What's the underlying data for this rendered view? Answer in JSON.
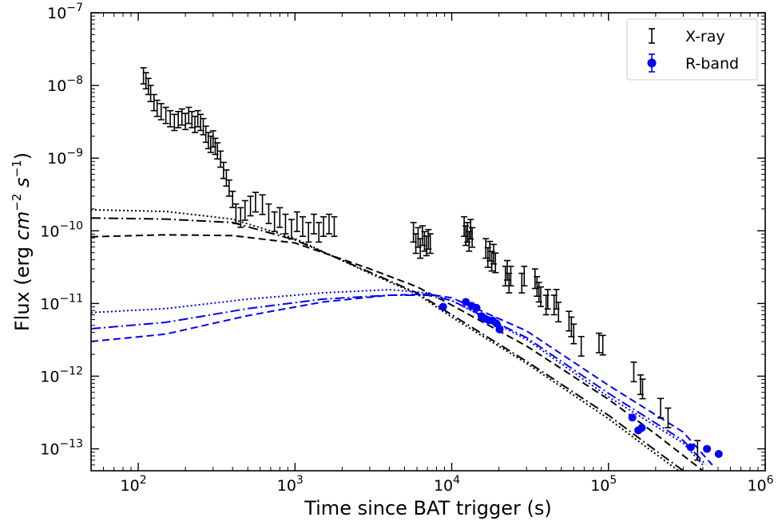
{
  "chart_data": {
    "type": "scatter",
    "title": "",
    "xlabel": "Time since BAT trigger (s)",
    "ylabel": "Flux (erg cm⁻² s⁻¹)",
    "ylabel_parts": {
      "prefix": "Flux (erg ",
      "cm": "cm",
      "cm_exp": "−2",
      "s": "s",
      "s_exp": "−1",
      "suffix": ")"
    },
    "xscale": "log",
    "yscale": "log",
    "xlim": [
      50,
      1000000
    ],
    "ylim": [
      5e-14,
      1e-07
    ],
    "x_ticks": [
      {
        "value": 100,
        "base": "10",
        "exp": "2"
      },
      {
        "value": 1000,
        "base": "10",
        "exp": "3"
      },
      {
        "value": 10000,
        "base": "10",
        "exp": "4"
      },
      {
        "value": 100000,
        "base": "10",
        "exp": "5"
      },
      {
        "value": 1000000,
        "base": "10",
        "exp": "6"
      }
    ],
    "y_ticks": [
      {
        "value": 1e-13,
        "base": "10",
        "exp": "−13"
      },
      {
        "value": 1e-12,
        "base": "10",
        "exp": "−12"
      },
      {
        "value": 1e-11,
        "base": "10",
        "exp": "−11"
      },
      {
        "value": 1e-10,
        "base": "10",
        "exp": "−10"
      },
      {
        "value": 1e-09,
        "base": "10",
        "exp": "−9"
      },
      {
        "value": 1e-08,
        "base": "10",
        "exp": "−8"
      },
      {
        "value": 1e-07,
        "base": "10",
        "exp": "−7"
      }
    ],
    "grid": false,
    "legend": {
      "placement": "top-right",
      "entries": [
        {
          "label": "X-ray",
          "marker": "errorbar",
          "color": "#000000"
        },
        {
          "label": "R-band",
          "marker": "circle",
          "color": "#0000ff"
        }
      ]
    },
    "series": [
      {
        "name": "X-ray",
        "color": "#000000",
        "marker": "errorbar",
        "points": [
          [
            108,
            1.4e-08,
            0.25
          ],
          [
            112,
            1.2e-08,
            0.25
          ],
          [
            116,
            1e-08,
            0.25
          ],
          [
            120,
            8e-09,
            0.25
          ],
          [
            126,
            6e-09,
            0.25
          ],
          [
            132,
            5e-09,
            0.25
          ],
          [
            140,
            4.5e-09,
            0.25
          ],
          [
            150,
            4e-09,
            0.25
          ],
          [
            160,
            3.6e-09,
            0.25
          ],
          [
            170,
            3.2e-09,
            0.25
          ],
          [
            180,
            3.5e-09,
            0.25
          ],
          [
            190,
            3.8e-09,
            0.25
          ],
          [
            200,
            3.3e-09,
            0.25
          ],
          [
            210,
            4e-09,
            0.25
          ],
          [
            220,
            3.5e-09,
            0.25
          ],
          [
            230,
            3e-09,
            0.25
          ],
          [
            240,
            3.6e-09,
            0.25
          ],
          [
            250,
            3.2e-09,
            0.25
          ],
          [
            260,
            2.8e-09,
            0.25
          ],
          [
            270,
            2.2e-09,
            0.25
          ],
          [
            280,
            1.8e-09,
            0.25
          ],
          [
            290,
            1.6e-09,
            0.25
          ],
          [
            300,
            1.9e-09,
            0.25
          ],
          [
            310,
            1.5e-09,
            0.25
          ],
          [
            320,
            1.3e-09,
            0.25
          ],
          [
            335,
            1e-09,
            0.25
          ],
          [
            350,
            7e-10,
            0.25
          ],
          [
            365,
            5.5e-10,
            0.25
          ],
          [
            380,
            4e-10,
            0.25
          ],
          [
            400,
            2.8e-10,
            0.25
          ],
          [
            420,
            1.8e-10,
            0.3
          ],
          [
            450,
            1.6e-10,
            0.3
          ],
          [
            480,
            2e-10,
            0.3
          ],
          [
            520,
            2.3e-10,
            0.3
          ],
          [
            560,
            2.6e-10,
            0.3
          ],
          [
            620,
            2.4e-10,
            0.3
          ],
          [
            680,
            1.8e-10,
            0.3
          ],
          [
            740,
            1.4e-10,
            0.3
          ],
          [
            800,
            1.6e-10,
            0.3
          ],
          [
            870,
            1.3e-10,
            0.3
          ],
          [
            950,
            1.1e-10,
            0.3
          ],
          [
            1030,
            1.4e-10,
            0.3
          ],
          [
            1120,
            1.2e-10,
            0.3
          ],
          [
            1220,
            1e-10,
            0.3
          ],
          [
            1320,
            1.3e-10,
            0.3
          ],
          [
            1420,
            1e-10,
            0.3
          ],
          [
            1520,
            1.2e-10,
            0.3
          ],
          [
            1650,
            1.3e-10,
            0.3
          ],
          [
            1780,
            1.2e-10,
            0.3
          ],
          [
            5700,
            1e-10,
            0.3
          ],
          [
            5900,
            7e-11,
            0.3
          ],
          [
            6100,
            8.5e-11,
            0.3
          ],
          [
            6300,
            6e-11,
            0.3
          ],
          [
            6500,
            9e-11,
            0.3
          ],
          [
            6700,
            7.5e-11,
            0.3
          ],
          [
            6900,
            6.5e-11,
            0.3
          ],
          [
            7100,
            8e-11,
            0.3
          ],
          [
            7300,
            7e-11,
            0.3
          ],
          [
            12000,
            1.2e-10,
            0.3
          ],
          [
            12300,
            9e-11,
            0.3
          ],
          [
            12600,
            1e-10,
            0.3
          ],
          [
            12900,
            7.5e-11,
            0.3
          ],
          [
            13200,
            1.1e-10,
            0.3
          ],
          [
            13500,
            8.5e-11,
            0.3
          ],
          [
            16500,
            6e-11,
            0.3
          ],
          [
            17000,
            4.5e-11,
            0.3
          ],
          [
            17500,
            5.5e-11,
            0.3
          ],
          [
            18000,
            4e-11,
            0.3
          ],
          [
            18500,
            5e-11,
            0.3
          ],
          [
            19000,
            3.8e-11,
            0.3
          ],
          [
            22000,
            2.5e-11,
            0.3
          ],
          [
            22600,
            3e-11,
            0.3
          ],
          [
            23200,
            2e-11,
            0.3
          ],
          [
            23800,
            2.5e-11,
            0.3
          ],
          [
            28000,
            2e-11,
            0.3
          ],
          [
            29000,
            2.5e-11,
            0.3
          ],
          [
            34000,
            2.3e-11,
            0.3
          ],
          [
            35000,
            1.8e-11,
            0.3
          ],
          [
            36000,
            1.5e-11,
            0.3
          ],
          [
            37000,
            1.3e-11,
            0.3
          ],
          [
            40000,
            1e-11,
            0.3
          ],
          [
            41000,
            1.2e-11,
            0.3
          ],
          [
            45000,
            1e-11,
            0.3
          ],
          [
            46500,
            1.2e-11,
            0.3
          ],
          [
            48000,
            8e-12,
            0.3
          ],
          [
            56000,
            6e-12,
            0.3
          ],
          [
            58000,
            5e-12,
            0.3
          ],
          [
            60000,
            4e-12,
            0.3
          ],
          [
            67000,
            2.7e-12,
            0.3
          ],
          [
            87000,
            3e-12,
            0.3
          ],
          [
            92000,
            2.8e-12,
            0.3
          ],
          [
            145000,
            1.2e-12,
            0.3
          ],
          [
            160000,
            8e-13,
            0.3
          ],
          [
            165000,
            7e-13,
            0.3
          ],
          [
            215000,
            3.8e-13,
            0.3
          ],
          [
            240000,
            2.8e-13,
            0.3
          ],
          [
            370000,
            1e-13,
            0.3
          ]
        ]
      },
      {
        "name": "R-band",
        "color": "#0000ff",
        "marker": "circle",
        "points": [
          [
            8800,
            9e-12
          ],
          [
            12300,
            1.05e-11
          ],
          [
            13400,
            9.3e-12
          ],
          [
            14400,
            8.7e-12
          ],
          [
            15500,
            6.7e-12
          ],
          [
            16300,
            6.2e-12
          ],
          [
            17200,
            5.9e-12
          ],
          [
            18300,
            5.8e-12
          ],
          [
            19300,
            5.3e-12
          ],
          [
            20200,
            4.4e-12
          ],
          [
            142000,
            2.7e-13
          ],
          [
            155000,
            1.8e-13
          ],
          [
            163000,
            1.95e-13
          ],
          [
            335000,
            1.05e-13
          ],
          [
            425000,
            1e-13
          ],
          [
            505000,
            8.5e-14
          ]
        ]
      }
    ],
    "model_curves": [
      {
        "color": "#000000",
        "style": "dotted",
        "points": [
          [
            50,
            1.95e-10
          ],
          [
            150,
            1.85e-10
          ],
          [
            400,
            1.45e-10
          ],
          [
            1000,
            7.8e-11
          ],
          [
            3000,
            2.6e-11
          ],
          [
            6000,
            1.35e-11
          ],
          [
            10000,
            6.5e-12
          ],
          [
            30000,
            1.5e-12
          ],
          [
            100000,
            2.6e-13
          ],
          [
            200000,
            8.5e-14
          ],
          [
            280000,
            5e-14
          ]
        ]
      },
      {
        "color": "#000000",
        "style": "dashdot",
        "points": [
          [
            50,
            1.5e-10
          ],
          [
            150,
            1.45e-10
          ],
          [
            400,
            1.3e-10
          ],
          [
            1000,
            7.5e-11
          ],
          [
            3000,
            2.7e-11
          ],
          [
            6000,
            1.4e-11
          ],
          [
            10000,
            7e-12
          ],
          [
            30000,
            1.6e-12
          ],
          [
            100000,
            2.9e-13
          ],
          [
            200000,
            9.5e-14
          ],
          [
            300000,
            5e-14
          ]
        ]
      },
      {
        "color": "#000000",
        "style": "dashed",
        "points": [
          [
            50,
            8.3e-11
          ],
          [
            150,
            8.8e-11
          ],
          [
            400,
            8.6e-11
          ],
          [
            1000,
            6.8e-11
          ],
          [
            3000,
            3e-11
          ],
          [
            6000,
            1.7e-11
          ],
          [
            10000,
            9.5e-12
          ],
          [
            30000,
            2.6e-12
          ],
          [
            100000,
            4.8e-13
          ],
          [
            200000,
            1.6e-13
          ],
          [
            400000,
            5e-14
          ]
        ]
      },
      {
        "color": "#0000ff",
        "style": "dotted",
        "points": [
          [
            50,
            7.5e-12
          ],
          [
            150,
            8.5e-12
          ],
          [
            500,
            1.15e-11
          ],
          [
            1500,
            1.4e-11
          ],
          [
            4000,
            1.55e-11
          ],
          [
            7000,
            1.4e-11
          ],
          [
            10000,
            1.1e-11
          ],
          [
            30000,
            3.2e-12
          ],
          [
            100000,
            5.2e-13
          ],
          [
            300000,
            1.2e-13
          ],
          [
            400000,
            6e-14
          ]
        ]
      },
      {
        "color": "#0000ff",
        "style": "dashdot",
        "points": [
          [
            50,
            4.5e-12
          ],
          [
            150,
            5.5e-12
          ],
          [
            500,
            8.5e-12
          ],
          [
            1500,
            1.15e-11
          ],
          [
            4000,
            1.3e-11
          ],
          [
            7000,
            1.3e-11
          ],
          [
            10000,
            1.1e-11
          ],
          [
            30000,
            3.4e-12
          ],
          [
            100000,
            5.8e-13
          ],
          [
            300000,
            1.3e-13
          ],
          [
            420000,
            6e-14
          ]
        ]
      },
      {
        "color": "#0000ff",
        "style": "dashed",
        "points": [
          [
            50,
            3e-12
          ],
          [
            150,
            3.8e-12
          ],
          [
            500,
            6.8e-12
          ],
          [
            1500,
            1.05e-11
          ],
          [
            4000,
            1.3e-11
          ],
          [
            7000,
            1.35e-11
          ],
          [
            10000,
            1.2e-11
          ],
          [
            30000,
            4.2e-12
          ],
          [
            100000,
            7.5e-13
          ],
          [
            300000,
            1.7e-13
          ],
          [
            460000,
            6e-14
          ]
        ]
      }
    ]
  }
}
